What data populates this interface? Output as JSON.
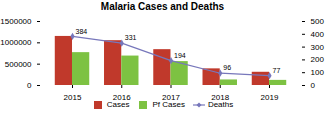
{
  "chart_data": {
    "type": "bar",
    "title": "Malaria Cases and Deaths",
    "categories": [
      "2015",
      "2016",
      "2017",
      "2018",
      "2019"
    ],
    "series": [
      {
        "name": "Cases",
        "color": "#c0392b",
        "values": [
          1150000,
          1050000,
          840000,
          390000,
          310000
        ]
      },
      {
        "name": "Pf Cases",
        "color": "#7dc242",
        "values": [
          770000,
          690000,
          560000,
          130000,
          120000
        ]
      },
      {
        "name": "Deaths",
        "type": "line",
        "axis": "y2",
        "color": "#7777bb",
        "marker": "diamond",
        "data_labels": true,
        "values": [
          384,
          331,
          194,
          96,
          77
        ]
      }
    ],
    "ylim": [
      0,
      1500000
    ],
    "yticks": [
      0,
      500000,
      1000000,
      1500000
    ],
    "y2lim": [
      0,
      500
    ],
    "y2ticks": [
      0,
      100,
      200,
      300,
      400,
      500
    ],
    "legend": "bottom",
    "grid": false
  }
}
